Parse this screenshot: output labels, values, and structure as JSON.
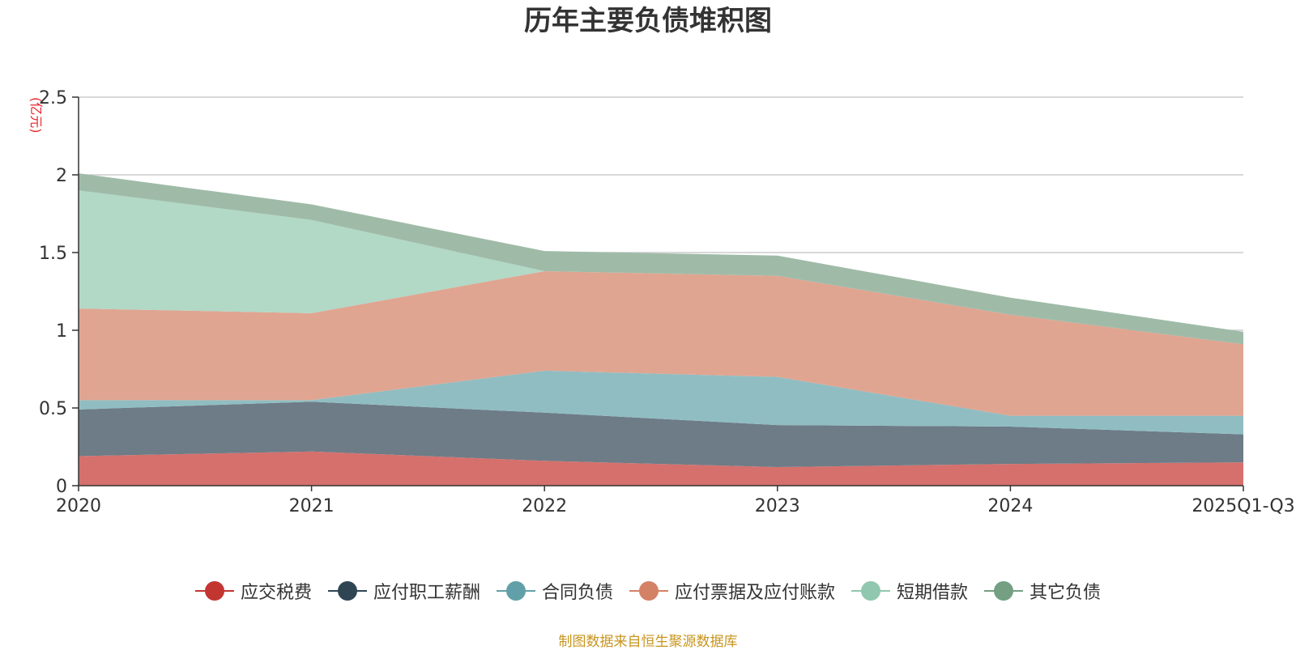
{
  "chart_data": {
    "type": "area",
    "stacked": true,
    "title": "历年主要负债堆积图",
    "unit": "(亿元)",
    "categories": [
      "2020",
      "2021",
      "2022",
      "2023",
      "2024",
      "2025Q1-Q3"
    ],
    "ylim": [
      0,
      2.5
    ],
    "yticks": [
      "0",
      "0.5",
      "1",
      "1.5",
      "2",
      "2.5"
    ],
    "grid": true,
    "legend_position": "bottom",
    "series": [
      {
        "name": "应交税费",
        "color": "#c23531",
        "area_color": "#d5706d",
        "values": [
          0.19,
          0.22,
          0.16,
          0.12,
          0.14,
          0.15
        ]
      },
      {
        "name": "应付职工薪酬",
        "color": "#2f4554",
        "area_color": "#6d7c87",
        "values": [
          0.3,
          0.32,
          0.31,
          0.27,
          0.24,
          0.18
        ]
      },
      {
        "name": "合同负债",
        "color": "#61a0a8",
        "area_color": "#90bdc2",
        "values": [
          0.06,
          0.01,
          0.27,
          0.31,
          0.07,
          0.12
        ]
      },
      {
        "name": "应付票据及应付账款",
        "color": "#d48265",
        "area_color": "#dfa591",
        "values": [
          0.59,
          0.56,
          0.64,
          0.65,
          0.65,
          0.46
        ]
      },
      {
        "name": "短期借款",
        "color": "#91c7ae",
        "area_color": "#b2d8c6",
        "values": [
          0.76,
          0.6,
          0.0,
          0.0,
          0.0,
          0.0
        ]
      },
      {
        "name": "其它负债",
        "color": "#749f83",
        "area_color": "#9fbba8",
        "values": [
          0.11,
          0.1,
          0.13,
          0.13,
          0.11,
          0.08
        ]
      }
    ]
  },
  "source_note": "制图数据来自恒生聚源数据库"
}
